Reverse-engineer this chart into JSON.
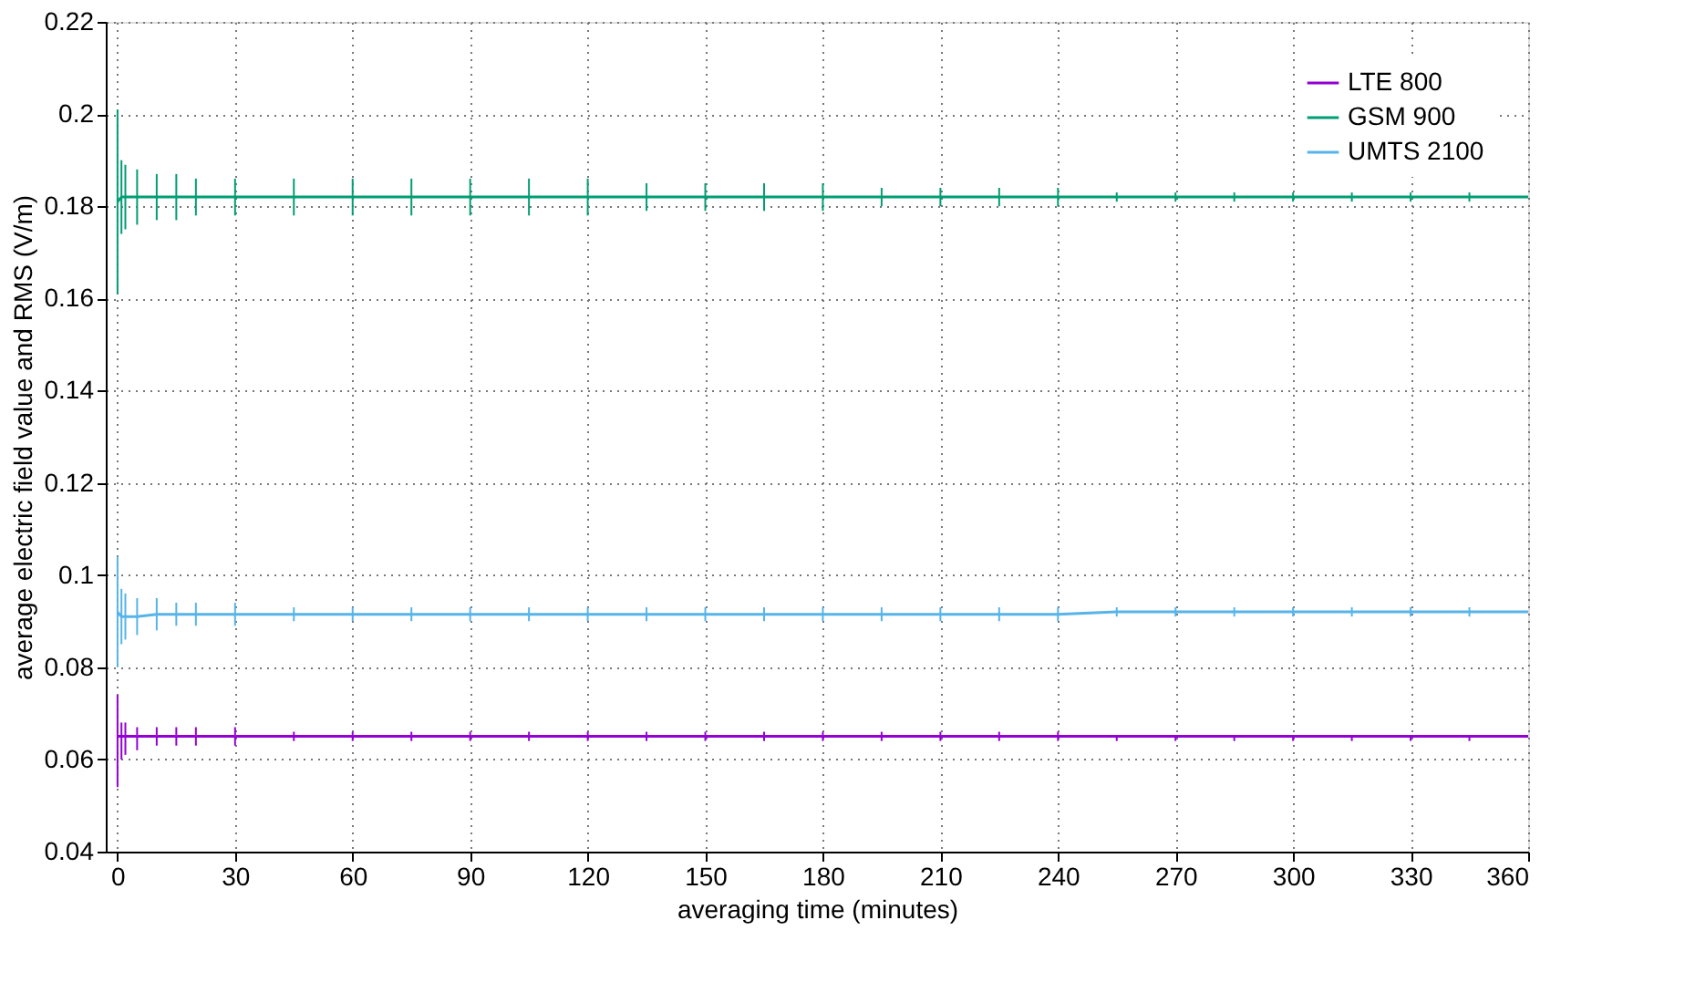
{
  "chart_data": {
    "type": "line",
    "xlabel": "averaging time (minutes)",
    "ylabel": "average electric field value and RMS (V/m)",
    "x": [
      0,
      1,
      2,
      5,
      10,
      15,
      20,
      30,
      45,
      60,
      75,
      90,
      105,
      120,
      135,
      150,
      165,
      180,
      195,
      210,
      225,
      240,
      255,
      270,
      285,
      300,
      315,
      330,
      345,
      360
    ],
    "xlim": [
      -3,
      360
    ],
    "xticks": [
      0,
      30,
      60,
      90,
      120,
      150,
      180,
      210,
      240,
      270,
      300,
      330,
      360
    ],
    "ylim": [
      0.04,
      0.22
    ],
    "yticks": [
      0.04,
      0.06,
      0.08,
      0.1,
      0.12,
      0.14,
      0.16,
      0.18,
      0.2,
      0.22
    ],
    "grid": true,
    "legend": "top right",
    "marker": "none",
    "line_style": "solid",
    "series": [
      {
        "name": "LTE 800",
        "color": "#9400d3",
        "values": [
          0.065,
          0.065,
          0.065,
          0.065,
          0.065,
          0.065,
          0.065,
          0.065,
          0.065,
          0.065,
          0.065,
          0.065,
          0.065,
          0.065,
          0.065,
          0.065,
          0.065,
          0.065,
          0.065,
          0.065,
          0.065,
          0.065,
          0.065,
          0.065,
          0.065,
          0.065,
          0.065,
          0.065,
          0.065,
          0.065
        ],
        "errors": [
          [
            0.054,
            0.074
          ],
          [
            0.06,
            0.068
          ],
          [
            0.061,
            0.068
          ],
          [
            0.062,
            0.067
          ],
          [
            0.063,
            0.067
          ],
          [
            0.063,
            0.067
          ],
          [
            0.063,
            0.067
          ],
          [
            0.063,
            0.067
          ],
          [
            0.064,
            0.066
          ],
          [
            0.064,
            0.066
          ],
          [
            0.064,
            0.066
          ],
          [
            0.064,
            0.066
          ],
          [
            0.064,
            0.066
          ],
          [
            0.064,
            0.066
          ],
          [
            0.064,
            0.066
          ],
          [
            0.064,
            0.066
          ],
          [
            0.064,
            0.066
          ],
          [
            0.064,
            0.066
          ],
          [
            0.064,
            0.066
          ],
          [
            0.064,
            0.066
          ],
          [
            0.064,
            0.066
          ],
          [
            0.064,
            0.066
          ],
          [
            0.064,
            0.065
          ],
          [
            0.064,
            0.065
          ],
          [
            0.064,
            0.065
          ],
          [
            0.064,
            0.065
          ],
          [
            0.064,
            0.065
          ],
          [
            0.064,
            0.065
          ],
          [
            0.064,
            0.065
          ],
          [
            0.065,
            0.065
          ]
        ]
      },
      {
        "name": "GSM 900",
        "color": "#009e73",
        "values": [
          0.181,
          0.182,
          0.182,
          0.182,
          0.182,
          0.182,
          0.182,
          0.182,
          0.182,
          0.182,
          0.182,
          0.182,
          0.182,
          0.182,
          0.182,
          0.182,
          0.182,
          0.182,
          0.182,
          0.182,
          0.182,
          0.182,
          0.182,
          0.182,
          0.182,
          0.182,
          0.182,
          0.182,
          0.182,
          0.182
        ],
        "errors": [
          [
            0.161,
            0.201
          ],
          [
            0.174,
            0.19
          ],
          [
            0.175,
            0.189
          ],
          [
            0.176,
            0.188
          ],
          [
            0.177,
            0.187
          ],
          [
            0.177,
            0.187
          ],
          [
            0.178,
            0.186
          ],
          [
            0.178,
            0.186
          ],
          [
            0.178,
            0.186
          ],
          [
            0.178,
            0.186
          ],
          [
            0.178,
            0.186
          ],
          [
            0.178,
            0.186
          ],
          [
            0.178,
            0.186
          ],
          [
            0.178,
            0.186
          ],
          [
            0.179,
            0.185
          ],
          [
            0.179,
            0.185
          ],
          [
            0.179,
            0.185
          ],
          [
            0.179,
            0.185
          ],
          [
            0.18,
            0.184
          ],
          [
            0.18,
            0.184
          ],
          [
            0.18,
            0.184
          ],
          [
            0.18,
            0.184
          ],
          [
            0.181,
            0.183
          ],
          [
            0.181,
            0.183
          ],
          [
            0.181,
            0.183
          ],
          [
            0.181,
            0.183
          ],
          [
            0.181,
            0.183
          ],
          [
            0.181,
            0.183
          ],
          [
            0.181,
            0.183
          ],
          [
            0.182,
            0.182
          ]
        ]
      },
      {
        "name": "UMTS 2100",
        "color": "#56b4e9",
        "values": [
          0.092,
          0.091,
          0.091,
          0.091,
          0.0915,
          0.0915,
          0.0915,
          0.0915,
          0.0915,
          0.0915,
          0.0915,
          0.0915,
          0.0915,
          0.0915,
          0.0915,
          0.0915,
          0.0915,
          0.0915,
          0.0915,
          0.0915,
          0.0915,
          0.0915,
          0.092,
          0.092,
          0.092,
          0.092,
          0.092,
          0.092,
          0.092,
          0.092
        ],
        "errors": [
          [
            0.08,
            0.104
          ],
          [
            0.085,
            0.097
          ],
          [
            0.086,
            0.096
          ],
          [
            0.087,
            0.095
          ],
          [
            0.088,
            0.095
          ],
          [
            0.089,
            0.094
          ],
          [
            0.089,
            0.094
          ],
          [
            0.089,
            0.094
          ],
          [
            0.09,
            0.093
          ],
          [
            0.09,
            0.093
          ],
          [
            0.09,
            0.093
          ],
          [
            0.09,
            0.093
          ],
          [
            0.09,
            0.093
          ],
          [
            0.09,
            0.093
          ],
          [
            0.09,
            0.093
          ],
          [
            0.09,
            0.093
          ],
          [
            0.09,
            0.093
          ],
          [
            0.09,
            0.093
          ],
          [
            0.09,
            0.093
          ],
          [
            0.09,
            0.093
          ],
          [
            0.09,
            0.093
          ],
          [
            0.09,
            0.093
          ],
          [
            0.091,
            0.093
          ],
          [
            0.091,
            0.093
          ],
          [
            0.091,
            0.093
          ],
          [
            0.091,
            0.093
          ],
          [
            0.091,
            0.093
          ],
          [
            0.091,
            0.093
          ],
          [
            0.091,
            0.093
          ],
          [
            0.092,
            0.092
          ]
        ]
      }
    ]
  }
}
